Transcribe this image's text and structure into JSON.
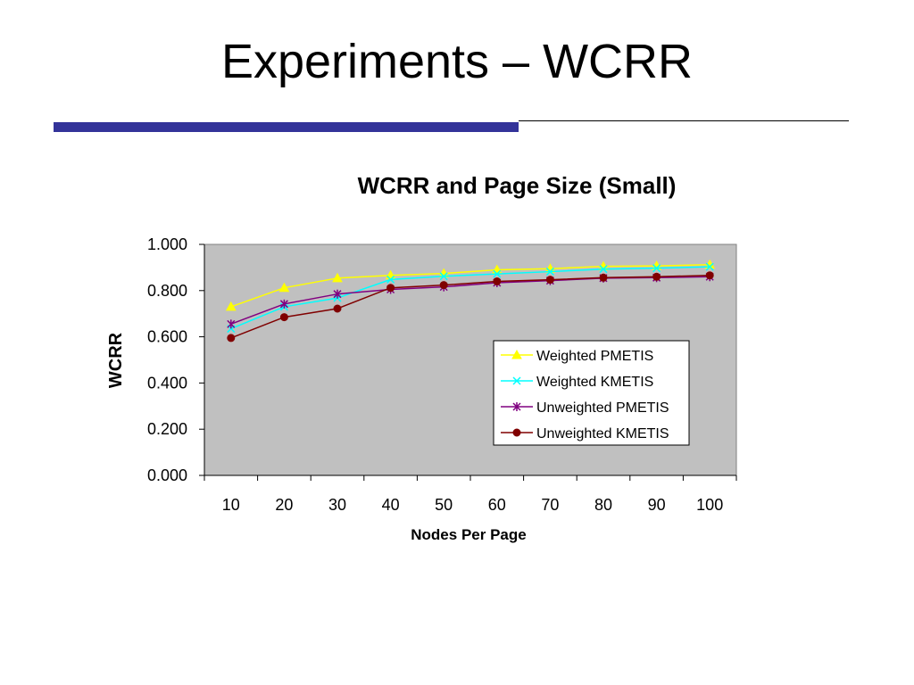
{
  "slide": {
    "title": "Experiments – WCRR",
    "accent_color": "#333399"
  },
  "chart_data": {
    "type": "line",
    "title": "WCRR and Page Size (Small)",
    "xlabel": "Nodes Per Page",
    "ylabel": "WCRR",
    "categories": [
      "10",
      "20",
      "30",
      "40",
      "50",
      "60",
      "70",
      "80",
      "90",
      "100"
    ],
    "yticks": [
      "0.000",
      "0.200",
      "0.400",
      "0.600",
      "0.800",
      "1.000"
    ],
    "ylim": [
      0,
      1
    ],
    "plot_background": "#C0C0C0",
    "grid": false,
    "legend_position": "right",
    "series": [
      {
        "name": "Weighted PMETIS",
        "color": "#FFFF00",
        "marker": "triangle",
        "values": [
          0.73,
          0.812,
          0.854,
          0.866,
          0.874,
          0.89,
          0.895,
          0.905,
          0.907,
          0.912
        ]
      },
      {
        "name": "Weighted KMETIS",
        "color": "#00FFFF",
        "marker": "x",
        "values": [
          0.635,
          0.73,
          0.768,
          0.848,
          0.862,
          0.872,
          0.882,
          0.893,
          0.897,
          0.903
        ]
      },
      {
        "name": "Unweighted PMETIS",
        "color": "#800080",
        "marker": "star",
        "values": [
          0.655,
          0.742,
          0.785,
          0.805,
          0.816,
          0.834,
          0.843,
          0.854,
          0.856,
          0.86
        ]
      },
      {
        "name": "Unweighted KMETIS",
        "color": "#800000",
        "marker": "circle",
        "values": [
          0.595,
          0.685,
          0.722,
          0.812,
          0.824,
          0.84,
          0.847,
          0.856,
          0.86,
          0.866
        ]
      }
    ]
  }
}
